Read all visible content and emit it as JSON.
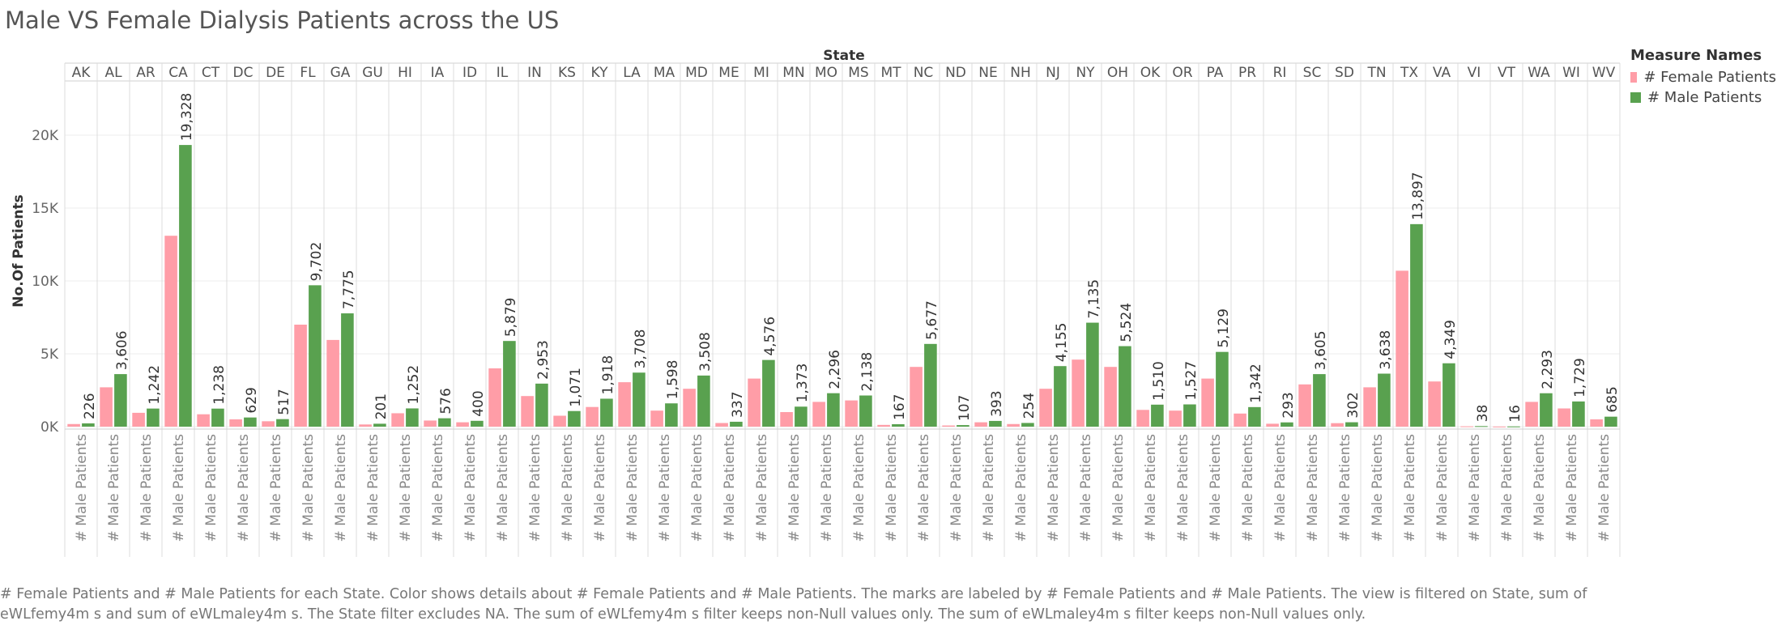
{
  "title": "Male VS Female Dialysis Patients across the US",
  "caption": "# Female Patients and # Male Patients for each State.  Color shows details about # Female Patients and # Male Patients.  The marks are labeled by # Female Patients and # Male Patients. The view is filtered on State, sum of eWLfemy4m s and sum of eWLmaley4m s. The State filter excludes NA. The sum of eWLfemy4m s filter keeps non-Null values only. The sum of eWLmaley4m s filter keeps non-Null values only.",
  "legend": {
    "title": "Measure Names",
    "items": [
      {
        "label": "# Female Patients",
        "color": "#ff9da7"
      },
      {
        "label": "# Male Patients",
        "color": "#59a14f"
      }
    ]
  },
  "chart_data": {
    "type": "bar",
    "column_header": "State",
    "ylabel": "No.Of Patients",
    "ylim": [
      -500,
      24000
    ],
    "yticks": [
      0,
      5000,
      10000,
      15000,
      20000
    ],
    "ytick_labels": [
      "0K",
      "5K",
      "10K",
      "15K",
      "20K"
    ],
    "grid": true,
    "legend_position": "top-right",
    "row_label": "# Male Patients",
    "categories": [
      "AK",
      "AL",
      "AR",
      "CA",
      "CT",
      "DC",
      "DE",
      "FL",
      "GA",
      "GU",
      "HI",
      "IA",
      "ID",
      "IL",
      "IN",
      "KS",
      "KY",
      "LA",
      "MA",
      "MD",
      "ME",
      "MI",
      "MN",
      "MO",
      "MS",
      "MT",
      "NC",
      "ND",
      "NE",
      "NH",
      "NJ",
      "NY",
      "OH",
      "OK",
      "OR",
      "PA",
      "PR",
      "RI",
      "SC",
      "SD",
      "TN",
      "TX",
      "VA",
      "VI",
      "VT",
      "WA",
      "WI",
      "WV"
    ],
    "series": [
      {
        "name": "# Female Patients",
        "color": "#ff9da7",
        "values": [
          180,
          2700,
          950,
          13100,
          850,
          500,
          370,
          7000,
          5950,
          150,
          920,
          420,
          300,
          4000,
          2100,
          750,
          1350,
          3050,
          1100,
          2600,
          250,
          3300,
          1000,
          1700,
          1800,
          120,
          4100,
          80,
          300,
          180,
          2600,
          4600,
          4100,
          1150,
          1100,
          3300,
          900,
          200,
          2900,
          240,
          2700,
          10700,
          3100,
          25,
          10,
          1700,
          1250,
          500
        ],
        "labels": null
      },
      {
        "name": "# Male Patients",
        "color": "#59a14f",
        "values": [
          226,
          3606,
          1242,
          19328,
          1238,
          629,
          517,
          9702,
          7775,
          201,
          1252,
          576,
          400,
          5879,
          2953,
          1071,
          1918,
          3708,
          1598,
          3508,
          337,
          4576,
          1373,
          2296,
          2138,
          167,
          5677,
          107,
          393,
          254,
          4155,
          7135,
          5524,
          1510,
          1527,
          5129,
          1342,
          293,
          3605,
          302,
          3638,
          13897,
          4349,
          38,
          16,
          2293,
          1729,
          685
        ],
        "labels": [
          "226",
          "3,606",
          "1,242",
          "19,328",
          "1,238",
          "629",
          "517",
          "9,702",
          "7,775",
          "201",
          "1,252",
          "576",
          "400",
          "5,879",
          "2,953",
          "1,071",
          "1,918",
          "3,708",
          "1,598",
          "3,508",
          "337",
          "4,576",
          "1,373",
          "2,296",
          "2,138",
          "167",
          "5,677",
          "107",
          "393",
          "254",
          "4,155",
          "7,135",
          "5,524",
          "1,510",
          "1,527",
          "5,129",
          "1,342",
          "293",
          "3,605",
          "302",
          "3,638",
          "13,897",
          "4,349",
          "38",
          "16",
          "2,293",
          "1,729",
          "685"
        ]
      }
    ]
  }
}
